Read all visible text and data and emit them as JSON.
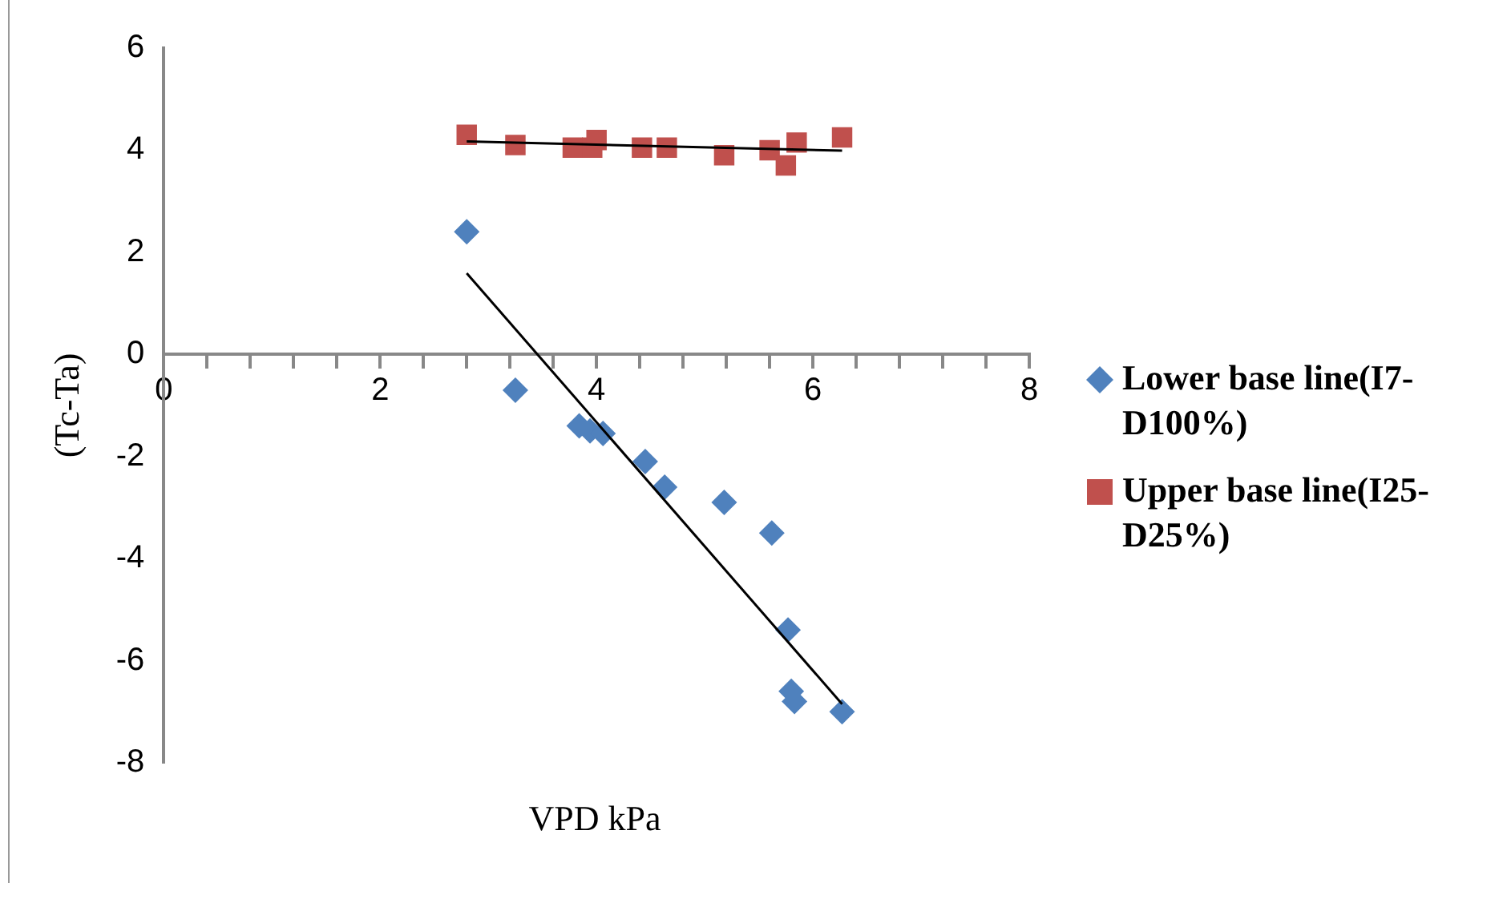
{
  "chart_data": {
    "type": "scatter",
    "xlabel": "VPD kPa",
    "ylabel": "(Tc-Ta)",
    "xlim": [
      0,
      8
    ],
    "ylim": [
      -8,
      6
    ],
    "xticks": [
      0,
      {
        "value": 0.4,
        "label": null
      },
      {
        "value": 0.8,
        "label": null
      },
      {
        "value": 1.2,
        "label": null
      },
      {
        "value": 1.6,
        "label": null
      },
      2,
      {
        "value": 2.4,
        "label": null
      },
      {
        "value": 2.8,
        "label": null
      },
      {
        "value": 3.2,
        "label": null
      },
      {
        "value": 3.6,
        "label": null
      },
      4,
      {
        "value": 4.4,
        "label": null
      },
      {
        "value": 4.8,
        "label": null
      },
      {
        "value": 5.2,
        "label": null
      },
      {
        "value": 5.6,
        "label": null
      },
      6,
      {
        "value": 6.4,
        "label": null
      },
      {
        "value": 6.8,
        "label": null
      },
      {
        "value": 7.2,
        "label": null
      },
      {
        "value": 7.6,
        "label": null
      },
      8
    ],
    "yticks": [
      -8,
      -6,
      -4,
      -2,
      0,
      2,
      4,
      6
    ],
    "grid": false,
    "legend": "right",
    "series": [
      {
        "name": "Lower base line(I7-D100%)",
        "color": "#4f81bd",
        "marker": "diamond",
        "x": [
          2.8,
          3.25,
          3.84,
          3.94,
          4.06,
          4.45,
          4.63,
          5.18,
          5.62,
          5.77,
          5.8,
          5.83,
          6.27
        ],
        "values": [
          2.4,
          -0.7,
          -1.4,
          -1.5,
          -1.55,
          -2.1,
          -2.6,
          -2.9,
          -3.5,
          -5.4,
          -6.6,
          -6.8,
          -7.0
        ]
      },
      {
        "name": "Upper base line(I25-D25%)",
        "color": "#c0504d",
        "marker": "square",
        "x": [
          2.8,
          3.25,
          3.78,
          3.96,
          4.0,
          4.42,
          4.65,
          5.18,
          5.6,
          5.75,
          5.85,
          6.27
        ],
        "values": [
          4.3,
          4.1,
          4.05,
          4.05,
          4.2,
          4.05,
          4.05,
          3.9,
          4.0,
          3.7,
          4.15,
          4.25
        ]
      },
      {
        "type": "line",
        "color": "#000000",
        "marker": "none",
        "x": [
          2.8,
          6.27
        ],
        "values": [
          1.59,
          -6.85
        ]
      },
      {
        "type": "line",
        "color": "#000000",
        "marker": "none",
        "x": [
          2.8,
          6.27
        ],
        "values": [
          4.17,
          3.99
        ]
      }
    ]
  }
}
